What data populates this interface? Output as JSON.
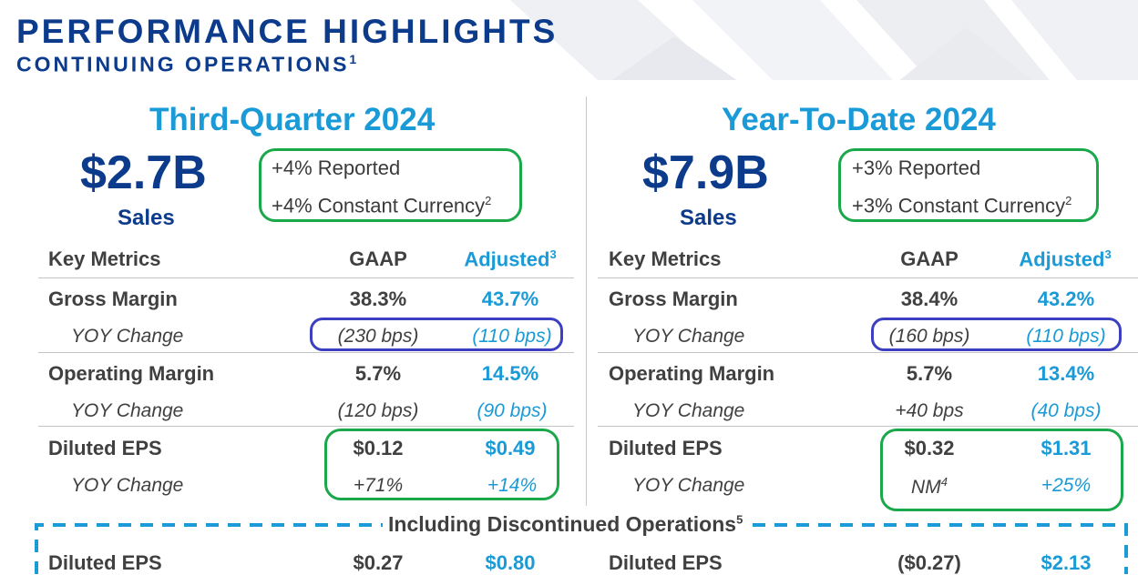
{
  "header": {
    "title": "PERFORMANCE HIGHLIGHTS",
    "subtitle": "CONTINUING OPERATIONS",
    "subtitle_sup": "1"
  },
  "colors": {
    "navy": "#0d3b8c",
    "accent_blue": "#1a9ad6",
    "highlight_green": "#1aa84a",
    "highlight_purple": "#3b3fc0"
  },
  "left": {
    "title": "Third-Quarter 2024",
    "sales_value": "$2.7B",
    "sales_label": "Sales",
    "reported": "+4% Reported",
    "constant_currency": "+4% Constant Currency",
    "cc_sup": "2",
    "key_metrics": "Key Metrics",
    "gaap": "GAAP",
    "adjusted": "Adjusted",
    "adjusted_sup": "3",
    "rows": [
      {
        "label": "Gross Margin",
        "gaap": "38.3%",
        "adjusted": "43.7%"
      },
      {
        "label": "YOY Change",
        "gaap": "(230 bps)",
        "adjusted": "(110 bps)"
      },
      {
        "label": "Operating Margin",
        "gaap": "5.7%",
        "adjusted": "14.5%"
      },
      {
        "label": "YOY Change",
        "gaap": "(120 bps)",
        "adjusted": "(90 bps)"
      },
      {
        "label": "Diluted EPS",
        "gaap": "$0.12",
        "adjusted": "$0.49"
      },
      {
        "label": "YOY Change",
        "gaap": "+71%",
        "adjusted": "+14%"
      }
    ],
    "disc_label": "Diluted EPS",
    "disc_gaap": "$0.27",
    "disc_adjusted": "$0.80"
  },
  "right": {
    "title": "Year-To-Date 2024",
    "sales_value": "$7.9B",
    "sales_label": "Sales",
    "reported": "+3% Reported",
    "constant_currency": "+3% Constant Currency",
    "cc_sup": "2",
    "key_metrics": "Key Metrics",
    "gaap": "GAAP",
    "adjusted": "Adjusted",
    "adjusted_sup": "3",
    "rows": [
      {
        "label": "Gross Margin",
        "gaap": "38.4%",
        "adjusted": "43.2%"
      },
      {
        "label": "YOY Change",
        "gaap": "(160 bps)",
        "adjusted": "(110 bps)"
      },
      {
        "label": "Operating Margin",
        "gaap": "5.7%",
        "adjusted": "13.4%"
      },
      {
        "label": "YOY Change",
        "gaap": "+40 bps",
        "adjusted": "(40 bps)"
      },
      {
        "label": "Diluted EPS",
        "gaap": "$0.32",
        "adjusted": "$1.31"
      },
      {
        "label": "YOY Change",
        "gaap": "NM",
        "gaap_sup": "4",
        "adjusted": "+25%"
      }
    ],
    "disc_label": "Diluted EPS",
    "disc_gaap": "($0.27)",
    "disc_adjusted": "$2.13"
  },
  "discontinued": {
    "label": "Including Discontinued Operations",
    "sup": "5"
  }
}
